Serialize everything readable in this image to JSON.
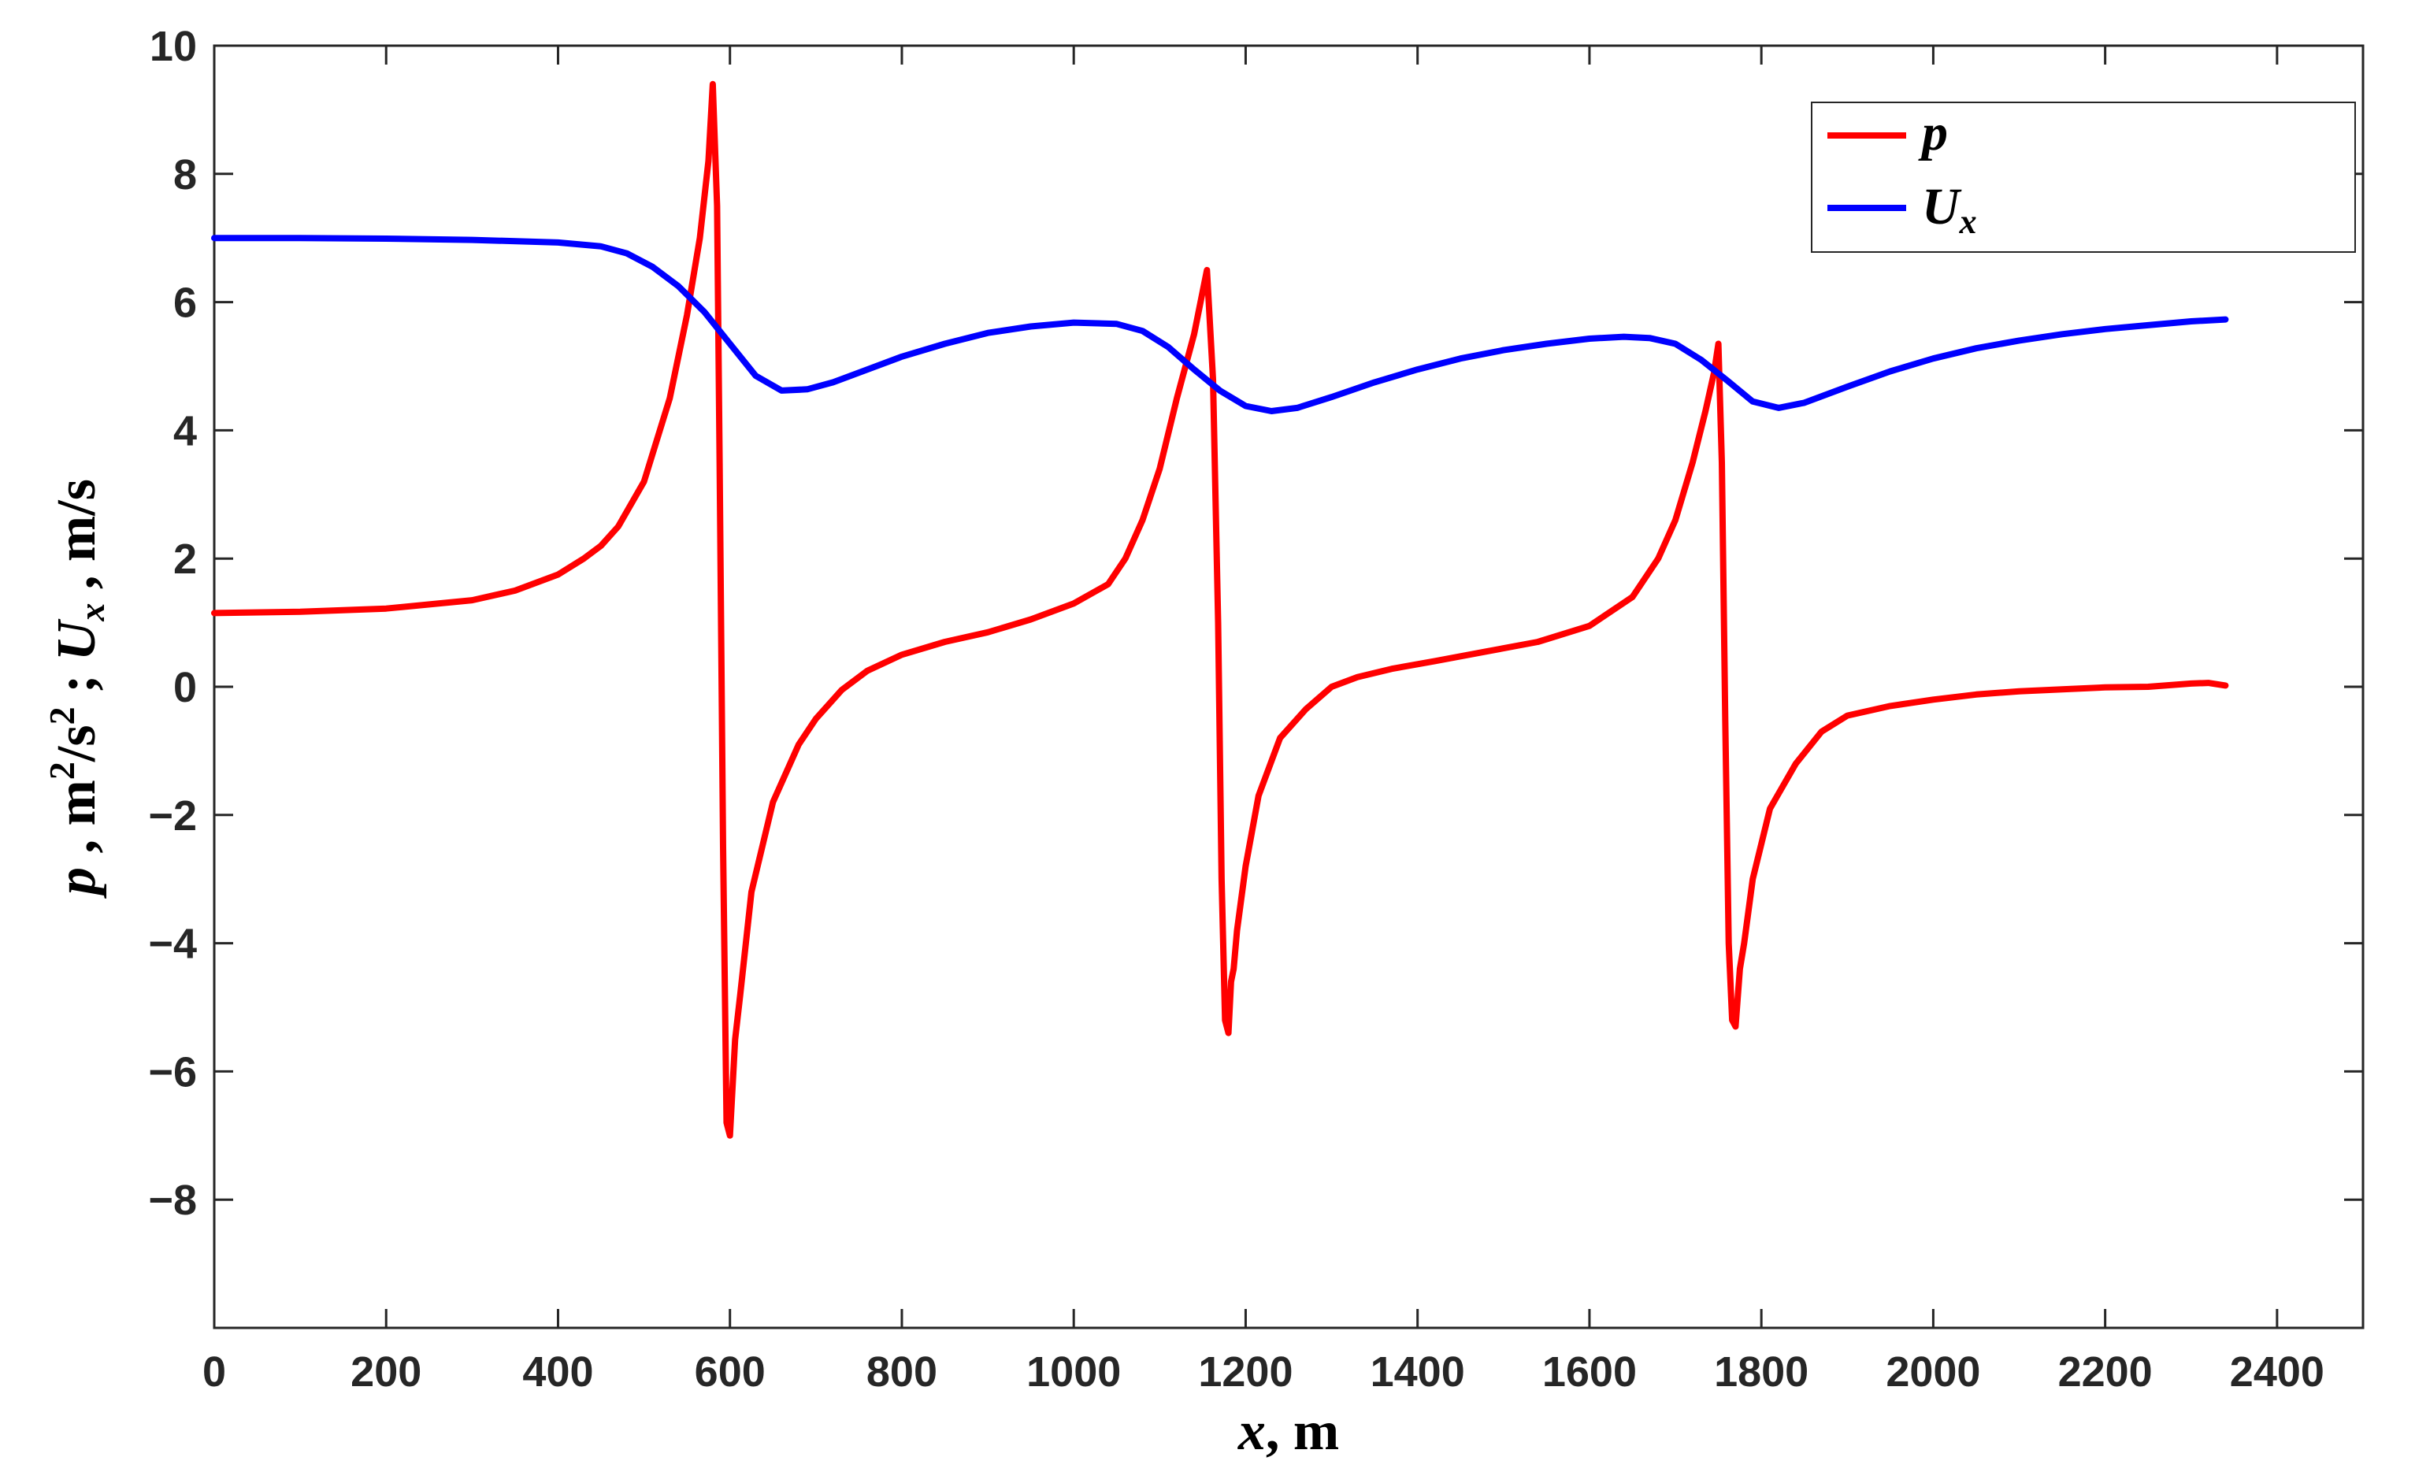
{
  "chart_data": {
    "type": "line",
    "title": "",
    "xlabel": {
      "var": "x",
      "unit": ", m"
    },
    "ylabel": {
      "var1": "p",
      "unit1": " , m",
      "sup1": "2",
      "unit1b": "/s",
      "sup2": "2",
      "sep": " ; ",
      "var2": "U",
      "sub2": "x",
      "unit2": " , m/s"
    },
    "xlim": [
      0,
      2500
    ],
    "ylim": [
      -10,
      10
    ],
    "xticks": [
      0,
      200,
      400,
      600,
      800,
      1000,
      1200,
      1400,
      1600,
      1800,
      2000,
      2200,
      2400
    ],
    "xtick_labels": [
      "0",
      "200",
      "400",
      "600",
      "800",
      "1000",
      "1200",
      "1400",
      "1600",
      "1800",
      "2000",
      "2200",
      "2400"
    ],
    "yticks": [
      -8,
      -6,
      -4,
      -2,
      0,
      2,
      4,
      6,
      8,
      10
    ],
    "ytick_labels": [
      "−8",
      "−6",
      "−4",
      "−2",
      "0",
      "2",
      "4",
      "6",
      "8",
      "10"
    ],
    "grid": false,
    "legend_position": "top-right",
    "series": [
      {
        "name": "p",
        "color": "#ff0000",
        "x": [
          0,
          100,
          200,
          300,
          350,
          400,
          430,
          450,
          470,
          500,
          530,
          550,
          565,
          575,
          580,
          585,
          588,
          592,
          596,
          600,
          606,
          612,
          625,
          650,
          680,
          700,
          730,
          760,
          800,
          850,
          900,
          950,
          1000,
          1040,
          1060,
          1080,
          1100,
          1120,
          1140,
          1155,
          1162,
          1168,
          1172,
          1176,
          1180,
          1183,
          1186,
          1190,
          1200,
          1215,
          1240,
          1270,
          1300,
          1330,
          1370,
          1420,
          1480,
          1540,
          1600,
          1650,
          1680,
          1700,
          1720,
          1735,
          1745,
          1750,
          1754,
          1758,
          1762,
          1766,
          1770,
          1775,
          1780,
          1790,
          1810,
          1840,
          1870,
          1900,
          1950,
          2000,
          2050,
          2100,
          2150,
          2200,
          2250,
          2300,
          2320,
          2340
        ],
        "y": [
          1.15,
          1.17,
          1.22,
          1.35,
          1.5,
          1.75,
          2.0,
          2.2,
          2.5,
          3.2,
          4.5,
          5.8,
          7.0,
          8.2,
          9.4,
          7.5,
          3.5,
          -2.5,
          -6.8,
          -7.0,
          -5.5,
          -4.8,
          -3.2,
          -1.8,
          -0.9,
          -0.5,
          -0.05,
          0.25,
          0.5,
          0.7,
          0.85,
          1.05,
          1.3,
          1.6,
          2.0,
          2.6,
          3.4,
          4.5,
          5.5,
          6.5,
          4.8,
          1.0,
          -3.0,
          -5.2,
          -5.4,
          -4.6,
          -4.4,
          -3.8,
          -2.8,
          -1.7,
          -0.8,
          -0.35,
          0.0,
          0.15,
          0.28,
          0.4,
          0.55,
          0.7,
          0.95,
          1.4,
          2.0,
          2.6,
          3.5,
          4.3,
          4.9,
          5.35,
          3.5,
          -0.5,
          -4.0,
          -5.2,
          -5.3,
          -4.4,
          -4.0,
          -3.0,
          -1.9,
          -1.2,
          -0.7,
          -0.45,
          -0.3,
          -0.2,
          -0.12,
          -0.07,
          -0.04,
          -0.01,
          0.0,
          0.05,
          0.06,
          0.02
        ]
      },
      {
        "name": "U",
        "name_sub": "x",
        "color": "#0000ff",
        "x": [
          0,
          100,
          200,
          300,
          400,
          450,
          480,
          510,
          540,
          570,
          600,
          630,
          660,
          690,
          720,
          760,
          800,
          850,
          900,
          950,
          1000,
          1050,
          1080,
          1110,
          1140,
          1170,
          1200,
          1230,
          1260,
          1300,
          1350,
          1400,
          1450,
          1500,
          1550,
          1600,
          1640,
          1670,
          1700,
          1730,
          1760,
          1790,
          1820,
          1850,
          1900,
          1950,
          2000,
          2050,
          2100,
          2150,
          2200,
          2250,
          2300,
          2340
        ],
        "y": [
          7.0,
          7.0,
          6.99,
          6.97,
          6.93,
          6.87,
          6.76,
          6.55,
          6.25,
          5.85,
          5.35,
          4.85,
          4.62,
          4.64,
          4.75,
          4.95,
          5.15,
          5.35,
          5.52,
          5.62,
          5.68,
          5.66,
          5.55,
          5.3,
          4.95,
          4.62,
          4.38,
          4.3,
          4.35,
          4.52,
          4.75,
          4.95,
          5.12,
          5.25,
          5.35,
          5.43,
          5.46,
          5.44,
          5.35,
          5.1,
          4.78,
          4.45,
          4.35,
          4.43,
          4.68,
          4.92,
          5.12,
          5.28,
          5.4,
          5.5,
          5.58,
          5.64,
          5.7,
          5.73
        ]
      }
    ]
  }
}
